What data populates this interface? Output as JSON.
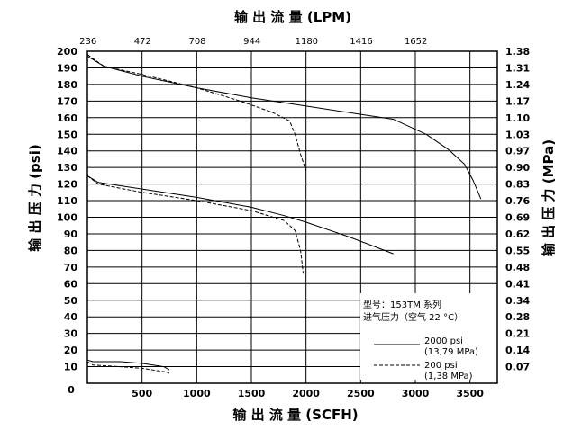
{
  "chart_data": {
    "type": "line",
    "title": "",
    "xlabel_bottom": "输 出 流 量 (SCFH)",
    "xlabel_top": "输 出 流 量 (LPM)",
    "ylabel_left": "输 出 压 力 (psi)",
    "ylabel_right": "输 出 压 力 (MPa)",
    "xlim": [
      0,
      3750
    ],
    "ylim": [
      0,
      200
    ],
    "grid": true,
    "x_ticks_bottom": [
      0,
      500,
      1000,
      1500,
      2000,
      2500,
      3000,
      3500
    ],
    "x_tick_labels_bottom": [
      "0",
      "500",
      "1000",
      "1500",
      "2000",
      "2500",
      "3000",
      "3500"
    ],
    "x_tick_labels_top": [
      "236",
      "472",
      "708",
      "944",
      "1180",
      "1416",
      "1652"
    ],
    "y_ticks_left": [
      0,
      10,
      20,
      30,
      40,
      50,
      60,
      70,
      80,
      90,
      100,
      110,
      120,
      130,
      140,
      150,
      160,
      170,
      180,
      190,
      200
    ],
    "y_tick_labels_left": [
      "0",
      "10",
      "20",
      "30",
      "40",
      "50",
      "60",
      "70",
      "80",
      "90",
      "100",
      "110",
      "120",
      "130",
      "140",
      "150",
      "160",
      "170",
      "180",
      "190",
      "200"
    ],
    "y_tick_labels_right": [
      "0.07",
      "0.14",
      "0.21",
      "0.28",
      "0.34",
      "0.41",
      "0.48",
      "0.55",
      "0.62",
      "0.69",
      "0.76",
      "0.83",
      "0.90",
      "0.97",
      "1.03",
      "1.10",
      "1.17",
      "1.24",
      "1.31",
      "1.38"
    ],
    "legend": {
      "position": "bottom-right",
      "model": "型号：153TM 系列",
      "inlet": "进气压力（空气 22 °C）",
      "entries": [
        {
          "line1": "2000 psi",
          "line2": "(13,79 MPa)",
          "style": "solid"
        },
        {
          "line1": "200 psi",
          "line2": "(1,38 MPa)",
          "style": "dashed"
        }
      ]
    },
    "series": [
      {
        "inlet": "2000 psi",
        "set": 200,
        "style": "solid",
        "points": [
          [
            0,
            197
          ],
          [
            150,
            191
          ],
          [
            500,
            185
          ],
          [
            1000,
            178
          ],
          [
            1500,
            172
          ],
          [
            2000,
            167
          ],
          [
            2500,
            162
          ],
          [
            2800,
            159
          ],
          [
            3100,
            150
          ],
          [
            3300,
            141
          ],
          [
            3450,
            132
          ],
          [
            3530,
            122
          ],
          [
            3600,
            111
          ]
        ]
      },
      {
        "inlet": "200 psi",
        "set": 200,
        "style": "dashed",
        "points": [
          [
            0,
            198
          ],
          [
            150,
            191
          ],
          [
            500,
            186
          ],
          [
            1000,
            178
          ],
          [
            1400,
            170
          ],
          [
            1700,
            163
          ],
          [
            1850,
            158
          ],
          [
            1900,
            150
          ],
          [
            1950,
            138
          ],
          [
            2000,
            128
          ]
        ]
      },
      {
        "inlet": "2000 psi",
        "set": 125,
        "style": "solid",
        "points": [
          [
            0,
            125
          ],
          [
            100,
            121
          ],
          [
            500,
            117
          ],
          [
            1000,
            112
          ],
          [
            1500,
            106
          ],
          [
            1800,
            101
          ],
          [
            2000,
            97
          ],
          [
            2400,
            88
          ],
          [
            2800,
            78
          ]
        ]
      },
      {
        "inlet": "200 psi",
        "set": 125,
        "style": "dashed",
        "points": [
          [
            0,
            125
          ],
          [
            100,
            120
          ],
          [
            500,
            115
          ],
          [
            1000,
            110
          ],
          [
            1500,
            104
          ],
          [
            1800,
            98
          ],
          [
            1900,
            92
          ],
          [
            1950,
            80
          ],
          [
            1975,
            66
          ]
        ]
      },
      {
        "inlet": "2000 psi",
        "set": 15,
        "style": "solid",
        "points": [
          [
            0,
            14
          ],
          [
            50,
            13
          ],
          [
            300,
            13
          ],
          [
            500,
            12
          ],
          [
            700,
            10
          ],
          [
            750,
            8
          ]
        ]
      },
      {
        "inlet": "200 psi",
        "set": 15,
        "style": "dashed",
        "points": [
          [
            0,
            13
          ],
          [
            50,
            11
          ],
          [
            300,
            10
          ],
          [
            500,
            9
          ],
          [
            700,
            7
          ],
          [
            750,
            6
          ]
        ]
      }
    ]
  }
}
